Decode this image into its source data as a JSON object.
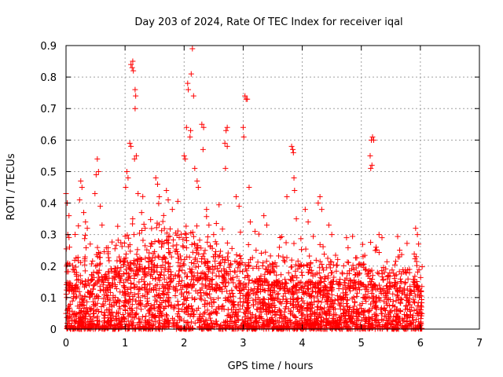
{
  "chart_data": {
    "type": "scatter",
    "title": "Day 203 of 2024, Rate Of TEC Index for receiver iqal",
    "xlabel": "GPS time / hours",
    "ylabel": "ROTI / TECUs",
    "xlim": [
      0,
      7
    ],
    "ylim": [
      0,
      0.9
    ],
    "x_ticks": [
      "0",
      "1",
      "2",
      "3",
      "4",
      "5",
      "6",
      "7"
    ],
    "y_ticks": [
      "0",
      "0.1",
      "0.2",
      "0.3",
      "0.4",
      "0.5",
      "0.6",
      "0.7",
      "0.8",
      "0.9"
    ],
    "grid": true,
    "marker": "+",
    "marker_color": "#ff0000",
    "data_extent_hours": [
      0,
      6.03
    ],
    "series": [
      {
        "name": "ROTI",
        "points": [
          [
            1.1,
            0.84
          ],
          [
            1.12,
            0.83
          ],
          [
            1.13,
            0.85
          ],
          [
            1.14,
            0.82
          ],
          [
            1.17,
            0.76
          ],
          [
            1.18,
            0.74
          ],
          [
            1.17,
            0.7
          ],
          [
            1.08,
            0.59
          ],
          [
            1.1,
            0.58
          ],
          [
            1.19,
            0.55
          ],
          [
            1.16,
            0.54
          ],
          [
            2.06,
            0.78
          ],
          [
            2.07,
            0.76
          ],
          [
            2.1,
            0.61
          ],
          [
            2.11,
            0.63
          ],
          [
            2.04,
            0.64
          ],
          [
            2.14,
            0.89
          ],
          [
            2.12,
            0.81
          ],
          [
            2.16,
            0.74
          ],
          [
            2.0,
            0.55
          ],
          [
            2.02,
            0.54
          ],
          [
            2.18,
            0.51
          ],
          [
            2.3,
            0.65
          ],
          [
            2.33,
            0.64
          ],
          [
            2.32,
            0.57
          ],
          [
            2.73,
            0.64
          ],
          [
            2.71,
            0.63
          ],
          [
            2.69,
            0.59
          ],
          [
            2.7,
            0.51
          ],
          [
            2.73,
            0.58
          ],
          [
            3.03,
            0.74
          ],
          [
            3.05,
            0.73
          ],
          [
            3.07,
            0.73
          ],
          [
            3.0,
            0.64
          ],
          [
            3.01,
            0.61
          ],
          [
            3.1,
            0.45
          ],
          [
            3.82,
            0.58
          ],
          [
            3.84,
            0.57
          ],
          [
            3.85,
            0.56
          ],
          [
            3.86,
            0.48
          ],
          [
            3.87,
            0.44
          ],
          [
            5.17,
            0.6
          ],
          [
            5.19,
            0.61
          ],
          [
            5.21,
            0.6
          ],
          [
            5.18,
            0.52
          ],
          [
            5.16,
            0.51
          ],
          [
            5.15,
            0.55
          ],
          [
            0.0,
            0.43
          ],
          [
            0.02,
            0.4
          ],
          [
            0.05,
            0.36
          ],
          [
            0.03,
            0.3
          ],
          [
            0.06,
            0.26
          ],
          [
            0.01,
            0.2
          ],
          [
            0.25,
            0.47
          ],
          [
            0.27,
            0.45
          ],
          [
            0.23,
            0.41
          ],
          [
            0.3,
            0.37
          ],
          [
            0.33,
            0.34
          ],
          [
            0.36,
            0.32
          ],
          [
            0.53,
            0.54
          ],
          [
            0.55,
            0.5
          ],
          [
            0.51,
            0.49
          ],
          [
            0.49,
            0.43
          ],
          [
            0.58,
            0.39
          ],
          [
            0.61,
            0.33
          ],
          [
            1.03,
            0.5
          ],
          [
            1.05,
            0.48
          ],
          [
            1.01,
            0.45
          ],
          [
            1.22,
            0.43
          ],
          [
            1.28,
            0.37
          ],
          [
            1.34,
            0.32
          ],
          [
            1.52,
            0.48
          ],
          [
            1.55,
            0.46
          ],
          [
            1.58,
            0.42
          ],
          [
            1.7,
            0.44
          ],
          [
            1.73,
            0.41
          ],
          [
            1.8,
            0.38
          ],
          [
            2.22,
            0.47
          ],
          [
            2.24,
            0.45
          ],
          [
            2.38,
            0.38
          ],
          [
            2.42,
            0.33
          ],
          [
            2.5,
            0.3
          ],
          [
            2.55,
            0.27
          ],
          [
            2.88,
            0.42
          ],
          [
            2.93,
            0.39
          ],
          [
            3.12,
            0.34
          ],
          [
            3.2,
            0.31
          ],
          [
            3.35,
            0.36
          ],
          [
            3.4,
            0.33
          ],
          [
            3.74,
            0.42
          ],
          [
            3.9,
            0.35
          ],
          [
            4.05,
            0.38
          ],
          [
            4.1,
            0.34
          ],
          [
            4.27,
            0.4
          ],
          [
            4.3,
            0.42
          ],
          [
            4.33,
            0.38
          ],
          [
            4.45,
            0.33
          ],
          [
            4.5,
            0.3
          ],
          [
            4.75,
            0.29
          ],
          [
            5.3,
            0.3
          ],
          [
            5.35,
            0.29
          ],
          [
            5.25,
            0.26
          ],
          [
            5.92,
            0.32
          ],
          [
            5.95,
            0.3
          ],
          [
            5.97,
            0.27
          ],
          [
            5.88,
            0.15
          ],
          [
            6.0,
            0.12
          ]
        ]
      }
    ]
  }
}
